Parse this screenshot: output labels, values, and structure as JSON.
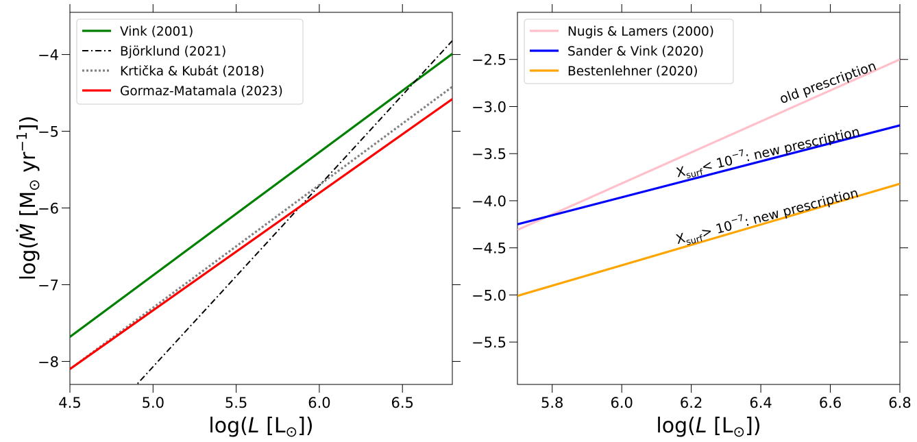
{
  "chart_data": [
    {
      "type": "line",
      "xlabel": "log(L [L⊙])",
      "ylabel": "log(Ṁ [M⊙ yr⁻¹])",
      "xlim": [
        4.5,
        6.8
      ],
      "ylim": [
        -8.3,
        -3.45
      ],
      "xticks": [
        4.5,
        5.0,
        5.5,
        6.0,
        6.5
      ],
      "xtick_labels": [
        "4.5",
        "5.0",
        "5.5",
        "6.0",
        "6.5"
      ],
      "yticks": [
        -8,
        -7,
        -6,
        -5,
        -4
      ],
      "ytick_labels": [
        "−8",
        "−7",
        "−6",
        "−5",
        "−4"
      ],
      "grid": false,
      "legend": "top-left",
      "series": [
        {
          "name": "Vink (2001)",
          "color": "#008000",
          "style": "solid",
          "x": [
            4.5,
            6.8
          ],
          "y": [
            -7.68,
            -3.99
          ]
        },
        {
          "name": "Björklund (2021)",
          "color": "#000000",
          "style": "dashdot",
          "x": [
            4.5,
            6.8
          ],
          "y": [
            -9.25,
            -3.82
          ]
        },
        {
          "name": "Krtička & Kubát (2018)",
          "color": "#808080",
          "style": "dotted",
          "x": [
            4.5,
            6.8
          ],
          "y": [
            -8.1,
            -4.42
          ]
        },
        {
          "name": "Gormaz-Matamala (2023)",
          "color": "#ff0000",
          "style": "solid",
          "x": [
            4.5,
            6.8
          ],
          "y": [
            -8.1,
            -4.58
          ]
        }
      ]
    },
    {
      "type": "line",
      "xlabel": "log(L [L⊙])",
      "ylabel": "",
      "xlim": [
        5.7,
        6.8
      ],
      "ylim": [
        -5.95,
        -2.0
      ],
      "xticks": [
        5.8,
        6.0,
        6.2,
        6.4,
        6.6,
        6.8
      ],
      "xtick_labels": [
        "5.8",
        "6.0",
        "6.2",
        "6.4",
        "6.6",
        "6.8"
      ],
      "yticks": [
        -5.5,
        -5.0,
        -4.5,
        -4.0,
        -3.5,
        -3.0,
        -2.5
      ],
      "ytick_labels": [
        "−5.5",
        "−5.0",
        "−4.5",
        "−4.0",
        "−3.5",
        "−3.0",
        "−2.5"
      ],
      "grid": false,
      "legend": "top-left",
      "series": [
        {
          "name": "Nugis & Lamers (2000)",
          "color": "#ffc0cb",
          "style": "solid",
          "x": [
            5.7,
            6.8
          ],
          "y": [
            -4.31,
            -2.5
          ]
        },
        {
          "name": "Sander & Vink (2020)",
          "color": "#0000ff",
          "style": "solid",
          "x": [
            5.7,
            6.8
          ],
          "y": [
            -4.25,
            -3.2
          ]
        },
        {
          "name": "Bestenlehner (2020)",
          "color": "#ffa500",
          "style": "solid",
          "x": [
            5.7,
            6.8
          ],
          "y": [
            -5.01,
            -3.82
          ]
        }
      ],
      "annotations": [
        {
          "text": "old prescription",
          "x": 6.46,
          "y": -2.97,
          "angle": 19.8
        },
        {
          "main": "X",
          "sub": "surf",
          "rest": "< 10",
          "sup": "−7",
          "tail": ": new prescription",
          "x": 6.16,
          "y": -3.75,
          "angle": 12.8
        },
        {
          "main": "X",
          "sub": "surf",
          "rest": "> 10",
          "sup": "−7",
          "tail": ": new prescription",
          "x": 6.16,
          "y": -4.46,
          "angle": 14.6
        }
      ]
    }
  ]
}
